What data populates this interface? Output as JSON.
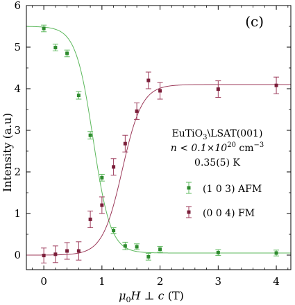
{
  "chart_data": {
    "type": "scatter",
    "panel_label": "(c)",
    "xlabel": "μ₀H ⊥ c (T)",
    "ylabel": "Intensity (a.u)",
    "xlim": [
      -0.3,
      4.25
    ],
    "ylim": [
      -0.35,
      6
    ],
    "x_ticks": [
      0,
      1,
      2,
      3,
      4
    ],
    "y_ticks": [
      0,
      1,
      2,
      3,
      4,
      5,
      6
    ],
    "annotations": {
      "line1_main": "EuTiO",
      "line1_sub": "3",
      "line1_rest": "\\LSAT(001)",
      "line2_pre": "n < 0.1×10",
      "line2_sup1": "20",
      "line2_mid": " cm",
      "line2_sup2": "−3",
      "line3": "0.35(5) K"
    },
    "legend_position": "right-middle",
    "series": [
      {
        "name": "(1 0 3) AFM",
        "color": "#2e8b2e",
        "line_color": "#5cb85c",
        "points": [
          {
            "x": 0.0,
            "y": 5.45,
            "err": 0.08
          },
          {
            "x": 0.2,
            "y": 4.99,
            "err": 0.08
          },
          {
            "x": 0.4,
            "y": 4.85,
            "err": 0.08
          },
          {
            "x": 0.6,
            "y": 3.84,
            "err": 0.09
          },
          {
            "x": 0.8,
            "y": 2.88,
            "err": 0.09
          },
          {
            "x": 1.0,
            "y": 1.86,
            "err": 0.08
          },
          {
            "x": 1.2,
            "y": 0.59,
            "err": 0.07
          },
          {
            "x": 1.4,
            "y": 0.22,
            "err": 0.09
          },
          {
            "x": 1.6,
            "y": 0.2,
            "err": 0.07
          },
          {
            "x": 1.8,
            "y": -0.04,
            "err": 0.08
          },
          {
            "x": 2.0,
            "y": 0.14,
            "err": 0.07
          },
          {
            "x": 3.0,
            "y": 0.06,
            "err": 0.07
          },
          {
            "x": 4.0,
            "y": 0.05,
            "err": 0.07
          }
        ],
        "fit": {
          "type": "sigmoid_decreasing",
          "high": 5.5,
          "low": 0.05,
          "x0": 0.85,
          "width": 0.15
        }
      },
      {
        "name": "(0 0 4) FM",
        "color": "#7b1f3a",
        "line_color": "#9c3a5a",
        "points": [
          {
            "x": 0.0,
            "y": -0.01,
            "err": 0.18
          },
          {
            "x": 0.2,
            "y": 0.02,
            "err": 0.2
          },
          {
            "x": 0.4,
            "y": 0.1,
            "err": 0.2
          },
          {
            "x": 0.6,
            "y": 0.1,
            "err": 0.22
          },
          {
            "x": 0.8,
            "y": 0.86,
            "err": 0.2
          },
          {
            "x": 1.0,
            "y": 1.2,
            "err": 0.2
          },
          {
            "x": 1.2,
            "y": 2.12,
            "err": 0.2
          },
          {
            "x": 1.4,
            "y": 2.68,
            "err": 0.2
          },
          {
            "x": 1.6,
            "y": 3.46,
            "err": 0.2
          },
          {
            "x": 1.8,
            "y": 4.2,
            "err": 0.2
          },
          {
            "x": 2.0,
            "y": 3.95,
            "err": 0.2
          },
          {
            "x": 3.0,
            "y": 3.99,
            "err": 0.2
          },
          {
            "x": 4.0,
            "y": 4.08,
            "err": 0.2
          }
        ],
        "fit": {
          "type": "sigmoid_increasing",
          "high": 4.1,
          "low": 0.0,
          "x0": 1.35,
          "width": 0.17
        }
      }
    ]
  }
}
